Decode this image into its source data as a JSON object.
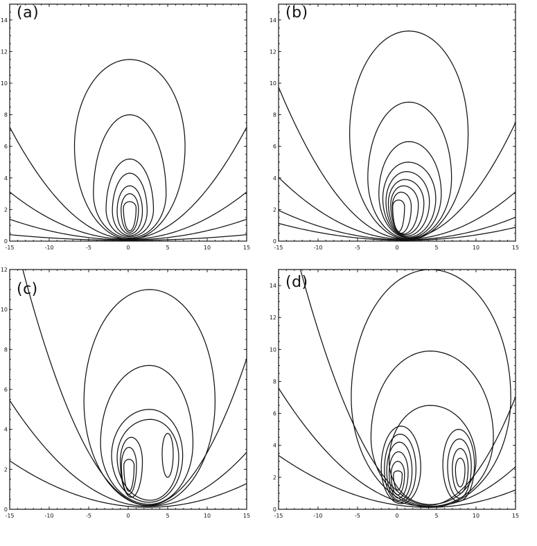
{
  "chart_data": [
    {
      "type": "contour",
      "panel_label": "(a)",
      "xlim": [
        -15,
        15
      ],
      "ylim": [
        0,
        15
      ],
      "x_ticks": [
        "-15",
        "-10",
        "-5",
        "0",
        "5",
        "10",
        "15"
      ],
      "y_ticks": [
        "0",
        "2",
        "4",
        "6",
        "8",
        "10",
        "12",
        "14"
      ],
      "grid": false,
      "loops": [
        {
          "cx": 0.2,
          "cy": 2.1,
          "left": 0.8,
          "right": 0.8,
          "bottom": 0.65,
          "top": 2.5
        },
        {
          "cx": 0.2,
          "cy": 2.0,
          "left": 1.1,
          "right": 1.1,
          "bottom": 0.55,
          "top": 3.0
        },
        {
          "cx": 0.2,
          "cy": 1.9,
          "left": 1.6,
          "right": 1.6,
          "bottom": 0.45,
          "top": 3.5
        },
        {
          "cx": 0.2,
          "cy": 1.9,
          "left": 2.2,
          "right": 2.2,
          "bottom": 0.35,
          "top": 4.3
        },
        {
          "cx": 0.2,
          "cy": 2.0,
          "left": 3.0,
          "right": 3.0,
          "bottom": 0.28,
          "top": 5.2
        },
        {
          "cx": 0.2,
          "cy": 3.0,
          "left": 4.6,
          "right": 4.6,
          "bottom": 0.2,
          "top": 8.0
        },
        {
          "cx": 0.2,
          "cy": 6.0,
          "left": 7.0,
          "right": 7.0,
          "bottom": 0.12,
          "top": 11.5
        }
      ],
      "bowls": [
        {
          "k": 0.0314,
          "offset": 0.15
        },
        {
          "k": 0.0133,
          "offset": 0.12
        },
        {
          "k": 0.0058,
          "offset": 0.08
        },
        {
          "k": 0.0016,
          "offset": 0.05
        }
      ]
    },
    {
      "type": "contour",
      "panel_label": "(b)",
      "xlim": [
        -15,
        15
      ],
      "ylim": [
        0,
        15
      ],
      "x_ticks": [
        "-15",
        "-10",
        "-5",
        "0",
        "5",
        "10",
        "15"
      ],
      "y_ticks": [
        "0",
        "2",
        "4",
        "6",
        "8",
        "10",
        "12",
        "14"
      ],
      "grid": false,
      "loops": [
        {
          "cx": 0.2,
          "cy": 2.2,
          "left": 0.75,
          "right": 0.75,
          "bottom": 0.6,
          "top": 2.6
        },
        {
          "cx": 0.5,
          "cy": 2.2,
          "left": 1.1,
          "right": 1.3,
          "bottom": 0.5,
          "top": 3.1
        },
        {
          "cx": 0.8,
          "cy": 2.3,
          "left": 1.6,
          "right": 1.9,
          "bottom": 0.45,
          "top": 3.5
        },
        {
          "cx": 1.0,
          "cy": 2.4,
          "left": 2.1,
          "right": 2.4,
          "bottom": 0.4,
          "top": 3.9
        },
        {
          "cx": 1.2,
          "cy": 2.5,
          "left": 2.6,
          "right": 2.9,
          "bottom": 0.32,
          "top": 4.4
        },
        {
          "cx": 1.4,
          "cy": 2.7,
          "left": 3.2,
          "right": 3.5,
          "bottom": 0.25,
          "top": 5.0
        },
        {
          "cx": 1.5,
          "cy": 3.0,
          "left": 3.8,
          "right": 4.1,
          "bottom": 0.2,
          "top": 6.3
        },
        {
          "cx": 1.5,
          "cy": 4.0,
          "left": 5.2,
          "right": 5.4,
          "bottom": 0.15,
          "top": 8.8
        },
        {
          "cx": 1.5,
          "cy": 6.8,
          "left": 7.5,
          "right": 7.5,
          "bottom": 0.1,
          "top": 13.3
        }
      ],
      "bowls": [
        {
          "k": 0.0375,
          "offset": 0.15,
          "shift": 1.0
        },
        {
          "k": 0.0153,
          "offset": 0.12,
          "shift": 1.0
        },
        {
          "k": 0.0073,
          "offset": 0.08,
          "shift": 1.0
        },
        {
          "k": 0.0042,
          "offset": 0.05,
          "shift": 1.0
        }
      ]
    },
    {
      "type": "contour",
      "panel_label": "(c)",
      "xlim": [
        -15,
        15
      ],
      "ylim": [
        0,
        12
      ],
      "x_ticks": [
        "-15",
        "-10",
        "-5",
        "0",
        "5",
        "10",
        "15"
      ],
      "y_ticks": [
        "0",
        "2",
        "4",
        "6",
        "8",
        "10",
        "12"
      ],
      "grid": false,
      "loops": [
        {
          "cx": 0.1,
          "cy": 2.2,
          "left": 0.65,
          "right": 0.65,
          "bottom": 0.9,
          "top": 2.5
        },
        {
          "cx": 0.1,
          "cy": 2.2,
          "left": 0.95,
          "right": 0.95,
          "bottom": 0.75,
          "top": 3.1
        },
        {
          "cx": 5.0,
          "cy": 2.8,
          "left": 0.7,
          "right": 0.7,
          "bottom": 1.6,
          "top": 3.8
        },
        {
          "cx": 0.4,
          "cy": 2.4,
          "left": 1.4,
          "right": 1.4,
          "bottom": 0.6,
          "top": 3.6
        },
        {
          "cx": 2.8,
          "cy": 2.6,
          "left": 4.2,
          "right": 3.6,
          "bottom": 0.45,
          "top": 4.5
        },
        {
          "cx": 2.7,
          "cy": 2.7,
          "left": 4.8,
          "right": 4.2,
          "bottom": 0.35,
          "top": 5.0
        },
        {
          "cx": 2.7,
          "cy": 3.3,
          "left": 6.2,
          "right": 5.5,
          "bottom": 0.25,
          "top": 7.2
        },
        {
          "cx": 2.7,
          "cy": 5.4,
          "left": 8.3,
          "right": 8.3,
          "bottom": 0.18,
          "top": 11.0
        }
      ],
      "bowls": [
        {
          "k": 0.047,
          "offset": 0.2,
          "shift": 2.5
        },
        {
          "k": 0.0173,
          "offset": 0.15,
          "shift": 2.5
        },
        {
          "k": 0.0076,
          "offset": 0.1,
          "shift": 2.5
        }
      ]
    },
    {
      "type": "contour",
      "panel_label": "(d)",
      "xlim": [
        -15,
        15
      ],
      "ylim": [
        0,
        15
      ],
      "x_ticks": [
        "-15",
        "-10",
        "-5",
        "0",
        "5",
        "10",
        "15"
      ],
      "y_ticks": [
        "0",
        "2",
        "4",
        "6",
        "8",
        "10",
        "12",
        "14"
      ],
      "grid": false,
      "loops": [
        {
          "cx": 0.1,
          "cy": 2.2,
          "left": 0.55,
          "right": 0.55,
          "bottom": 1.2,
          "top": 2.4
        },
        {
          "cx": 0.1,
          "cy": 2.2,
          "left": 0.85,
          "right": 0.85,
          "bottom": 0.9,
          "top": 3.0
        },
        {
          "cx": 0.2,
          "cy": 2.3,
          "left": 1.2,
          "right": 1.2,
          "bottom": 0.7,
          "top": 3.6
        },
        {
          "cx": 0.3,
          "cy": 2.4,
          "left": 1.6,
          "right": 1.6,
          "bottom": 0.55,
          "top": 4.2
        },
        {
          "cx": 0.4,
          "cy": 2.5,
          "left": 2.0,
          "right": 2.0,
          "bottom": 0.45,
          "top": 4.7
        },
        {
          "cx": 0.5,
          "cy": 2.6,
          "left": 2.5,
          "right": 2.5,
          "bottom": 0.35,
          "top": 5.2
        },
        {
          "cx": 8.0,
          "cy": 2.5,
          "left": 0.6,
          "right": 0.6,
          "bottom": 1.4,
          "top": 3.2
        },
        {
          "cx": 8.0,
          "cy": 2.6,
          "left": 1.0,
          "right": 1.0,
          "bottom": 1.0,
          "top": 3.8
        },
        {
          "cx": 7.9,
          "cy": 2.7,
          "left": 1.5,
          "right": 1.5,
          "bottom": 0.7,
          "top": 4.4
        },
        {
          "cx": 7.8,
          "cy": 2.8,
          "left": 2.0,
          "right": 2.0,
          "bottom": 0.5,
          "top": 5.0
        },
        {
          "cx": 4.2,
          "cy": 3.0,
          "left": 5.2,
          "right": 5.8,
          "bottom": 0.3,
          "top": 6.5
        },
        {
          "cx": 4.2,
          "cy": 4.5,
          "left": 7.5,
          "right": 8.0,
          "bottom": 0.18,
          "top": 9.9
        },
        {
          "cx": 4.2,
          "cy": 7.0,
          "left": 10.0,
          "right": 10.2,
          "bottom": 0.12,
          "top": 15.0
        }
      ],
      "bowls": [
        {
          "k": 0.056,
          "offset": 0.25,
          "shift": 4.0
        },
        {
          "k": 0.0205,
          "offset": 0.18,
          "shift": 4.0
        },
        {
          "k": 0.009,
          "offset": 0.12,
          "shift": 4.0
        }
      ]
    }
  ]
}
